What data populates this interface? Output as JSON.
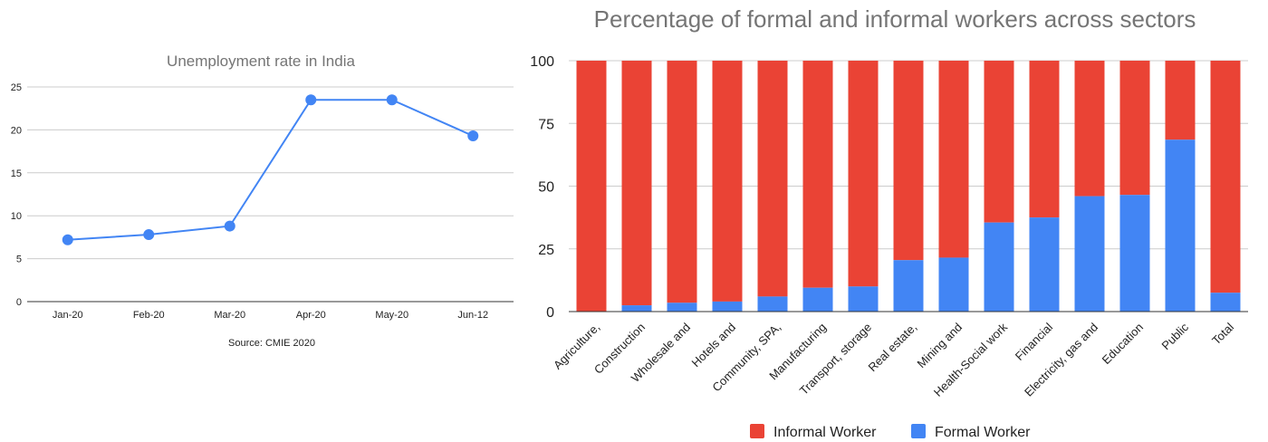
{
  "colors": {
    "line": "#4285f4",
    "informal": "#ea4335",
    "formal": "#4285f4",
    "grid": "#cccccc",
    "axis": "#333333",
    "title": "#757575",
    "text": "#222222"
  },
  "chart_data": [
    {
      "type": "line",
      "title": "Unemployment rate in India",
      "source": "Source: CMIE 2020",
      "categories": [
        "Jan-20",
        "Feb-20",
        "Mar-20",
        "Apr-20",
        "May-20",
        "Jun-12"
      ],
      "values": [
        7.2,
        7.8,
        8.8,
        23.5,
        23.5,
        19.3
      ],
      "ylim": [
        0,
        25
      ],
      "yticks": [
        0,
        5,
        10,
        15,
        20,
        25
      ],
      "grid": true,
      "legend": "none"
    },
    {
      "type": "bar",
      "stacked": true,
      "title": "Percentage of formal and informal workers across sectors",
      "categories": [
        "Agriculture,",
        "Construction",
        "Wholesale and",
        "Hotels and",
        "Community, SPA,",
        "Manufacturing",
        "Transport, storage",
        "Real estate,",
        "Mining and",
        "Health-Social work",
        "Financial",
        "Electricity, gas and",
        "Education",
        "Public",
        "Total"
      ],
      "series": [
        {
          "name": "Formal Worker",
          "values": [
            0,
            2.5,
            3.5,
            4,
            6,
            9.5,
            10,
            20.5,
            21.5,
            35.5,
            37.5,
            46,
            46.5,
            68.5,
            7.5
          ]
        },
        {
          "name": "Informal Worker",
          "values": [
            100,
            97.5,
            96.5,
            96,
            94,
            90.5,
            90,
            79.5,
            78.5,
            64.5,
            62.5,
            54,
            53.5,
            31.5,
            92.5
          ]
        }
      ],
      "ylim": [
        0,
        100
      ],
      "yticks": [
        0,
        25,
        50,
        75,
        100
      ],
      "grid": true,
      "legend": "bottom",
      "legend_entries": [
        "Informal Worker",
        "Formal Worker"
      ]
    }
  ]
}
